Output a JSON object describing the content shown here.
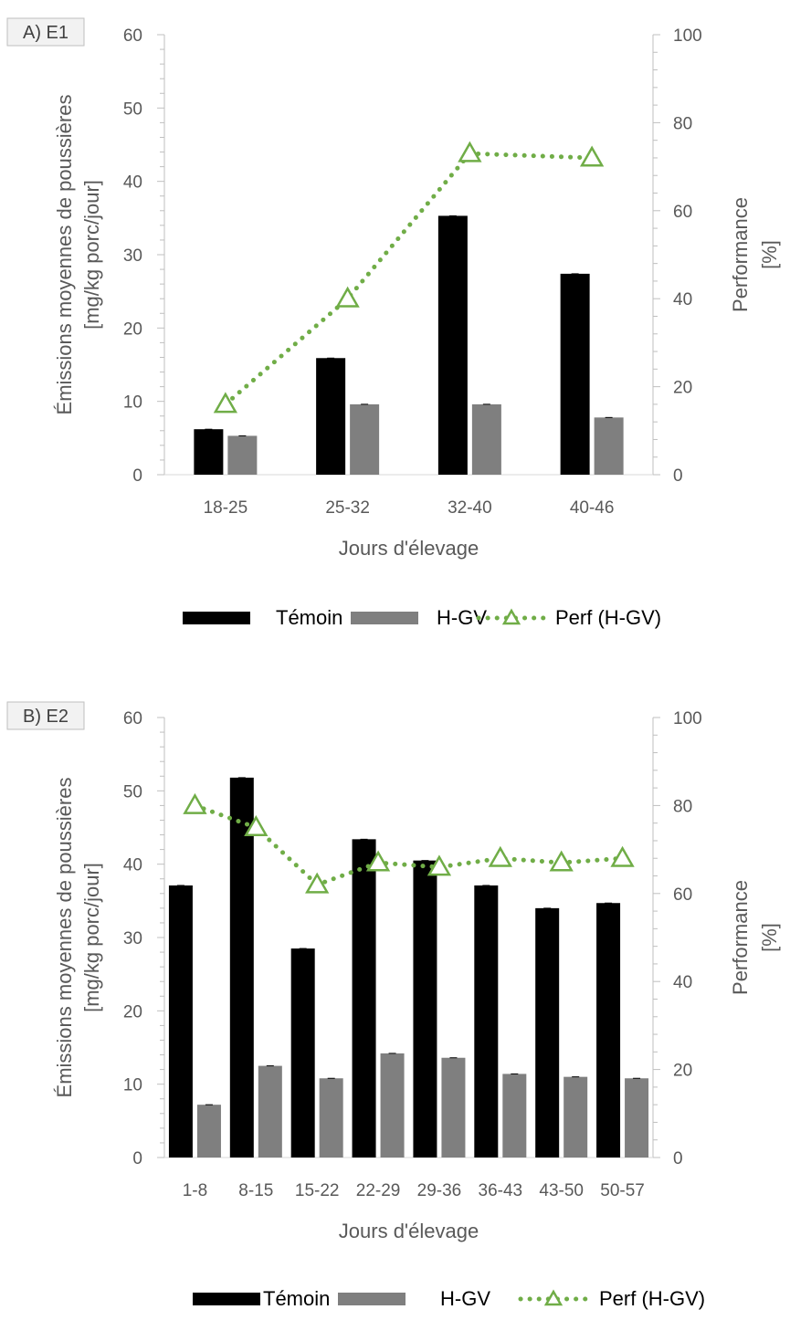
{
  "chart_data": [
    {
      "type": "bar",
      "panel_label": "A) E1",
      "categories": [
        "18-25",
        "25-32",
        "32-40",
        "40-46"
      ],
      "series": [
        {
          "name": "Témoin",
          "axis": "left",
          "values": [
            6.2,
            15.9,
            35.3,
            27.4
          ],
          "color": "#000000"
        },
        {
          "name": "H-GV",
          "axis": "left",
          "values": [
            5.3,
            9.6,
            9.6,
            7.8
          ],
          "color": "#7f7f7f"
        },
        {
          "name": "Perf (H-GV)",
          "axis": "right",
          "type": "line",
          "style": "dotted",
          "marker": "triangle-open",
          "values": [
            16,
            40,
            73,
            72
          ],
          "color": "#70ad47"
        }
      ],
      "xlabel": "Jours d'élevage",
      "ylabel_lines": [
        "Émissions moyennes de poussières",
        "[mg/kg porc/jour]"
      ],
      "y2label_lines": [
        "Performance",
        "[%]"
      ],
      "ylim": [
        0,
        60
      ],
      "yticks": [
        "0",
        "10",
        "20",
        "30",
        "40",
        "50",
        "60"
      ],
      "y2lim": [
        0,
        100
      ],
      "y2ticks": [
        "0",
        "20",
        "40",
        "60",
        "80",
        "100"
      ],
      "grid": false,
      "legend_placement": "bottom"
    },
    {
      "type": "bar",
      "panel_label": "B) E2",
      "categories": [
        "1-8",
        "8-15",
        "15-22",
        "22-29",
        "29-36",
        "36-43",
        "43-50",
        "50-57"
      ],
      "series": [
        {
          "name": "Témoin",
          "axis": "left",
          "values": [
            37.1,
            51.8,
            28.5,
            43.4,
            40.5,
            37.1,
            34.0,
            34.7
          ],
          "color": "#000000"
        },
        {
          "name": "H-GV",
          "axis": "left",
          "values": [
            7.2,
            12.5,
            10.8,
            14.2,
            13.6,
            11.4,
            11.0,
            10.8
          ],
          "color": "#7f7f7f"
        },
        {
          "name": "Perf (H-GV)",
          "axis": "right",
          "type": "line",
          "style": "dotted",
          "marker": "triangle-open",
          "values": [
            80,
            75,
            62,
            67,
            66,
            68,
            67,
            68
          ],
          "color": "#70ad47"
        }
      ],
      "xlabel": "Jours d'élevage",
      "ylabel_lines": [
        "Émissions moyennes de poussières",
        "[mg/kg porc/jour]"
      ],
      "y2label_lines": [
        "Performance",
        "[%]"
      ],
      "ylim": [
        0,
        60
      ],
      "yticks": [
        "0",
        "10",
        "20",
        "30",
        "40",
        "50",
        "60"
      ],
      "y2lim": [
        0,
        100
      ],
      "y2ticks": [
        "0",
        "20",
        "40",
        "60",
        "80",
        "100"
      ],
      "grid": false,
      "legend_placement": "bottom"
    }
  ]
}
